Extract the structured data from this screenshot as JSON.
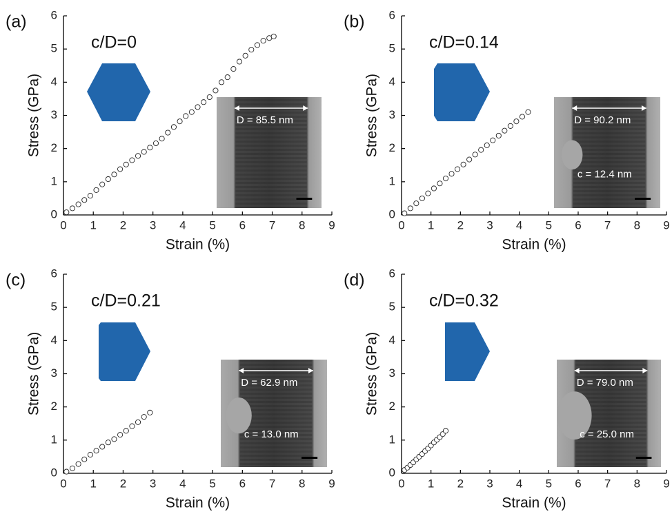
{
  "chart_data": [
    {
      "type": "scatter",
      "panel_label": "(a)",
      "annotation": "c/D=0",
      "xlabel": "Strain (%)",
      "ylabel": "Stress (GPa)",
      "x": [
        0.1,
        0.3,
        0.5,
        0.7,
        0.9,
        1.1,
        1.3,
        1.5,
        1.7,
        1.9,
        2.1,
        2.3,
        2.5,
        2.7,
        2.9,
        3.1,
        3.3,
        3.5,
        3.7,
        3.9,
        4.1,
        4.3,
        4.5,
        4.7,
        4.9,
        5.1,
        5.3,
        5.5,
        5.7,
        5.9,
        6.1,
        6.3,
        6.5,
        6.7,
        6.9,
        7.05
      ],
      "values": [
        0.08,
        0.2,
        0.32,
        0.45,
        0.58,
        0.75,
        0.92,
        1.08,
        1.22,
        1.38,
        1.52,
        1.65,
        1.78,
        1.9,
        2.03,
        2.16,
        2.3,
        2.48,
        2.65,
        2.82,
        2.98,
        3.1,
        3.25,
        3.4,
        3.55,
        3.75,
        4.0,
        4.15,
        4.4,
        4.62,
        4.8,
        4.98,
        5.12,
        5.25,
        5.33,
        5.38
      ],
      "xlim": [
        0,
        9
      ],
      "ylim": [
        0,
        6
      ],
      "xticks": [
        0,
        1,
        2,
        3,
        4,
        5,
        6,
        7,
        8,
        9
      ],
      "yticks": [
        0,
        1,
        2,
        3,
        4,
        5,
        6
      ],
      "inset": {
        "diameter_label": "D = 85.5 nm"
      }
    },
    {
      "type": "scatter",
      "panel_label": "(b)",
      "annotation": "c/D=0.14",
      "xlabel": "Strain (%)",
      "ylabel": "Stress (GPa)",
      "x": [
        0.1,
        0.3,
        0.5,
        0.7,
        0.9,
        1.1,
        1.3,
        1.5,
        1.7,
        1.9,
        2.1,
        2.3,
        2.5,
        2.7,
        2.9,
        3.1,
        3.3,
        3.5,
        3.7,
        3.9,
        4.1,
        4.3
      ],
      "values": [
        0.05,
        0.2,
        0.35,
        0.5,
        0.65,
        0.8,
        0.95,
        1.1,
        1.24,
        1.38,
        1.52,
        1.67,
        1.82,
        1.96,
        2.1,
        2.25,
        2.39,
        2.54,
        2.68,
        2.82,
        2.96,
        3.1
      ],
      "xlim": [
        0,
        9
      ],
      "ylim": [
        0,
        6
      ],
      "xticks": [
        0,
        1,
        2,
        3,
        4,
        5,
        6,
        7,
        8,
        9
      ],
      "yticks": [
        0,
        1,
        2,
        3,
        4,
        5,
        6
      ],
      "inset": {
        "diameter_label": "D = 90.2 nm",
        "notch_label": "c = 12.4 nm"
      }
    },
    {
      "type": "scatter",
      "panel_label": "(c)",
      "annotation": "c/D=0.21",
      "xlabel": "Strain (%)",
      "ylabel": "Stress (GPa)",
      "x": [
        0.1,
        0.3,
        0.5,
        0.7,
        0.9,
        1.1,
        1.3,
        1.5,
        1.7,
        1.9,
        2.1,
        2.3,
        2.5,
        2.7,
        2.9
      ],
      "values": [
        0.05,
        0.15,
        0.28,
        0.42,
        0.56,
        0.68,
        0.8,
        0.93,
        1.03,
        1.16,
        1.28,
        1.42,
        1.54,
        1.7,
        1.83
      ],
      "xlim": [
        0,
        9
      ],
      "ylim": [
        0,
        6
      ],
      "xticks": [
        0,
        1,
        2,
        3,
        4,
        5,
        6,
        7,
        8,
        9
      ],
      "yticks": [
        0,
        1,
        2,
        3,
        4,
        5,
        6
      ],
      "inset": {
        "diameter_label": "D = 62.9 nm",
        "notch_label": "c = 13.0 nm"
      }
    },
    {
      "type": "scatter",
      "panel_label": "(d)",
      "annotation": "c/D=0.32",
      "xlabel": "Strain (%)",
      "ylabel": "Stress (GPa)",
      "x": [
        0.1,
        0.2,
        0.3,
        0.4,
        0.5,
        0.6,
        0.7,
        0.8,
        0.9,
        1.0,
        1.1,
        1.2,
        1.3,
        1.4,
        1.5
      ],
      "values": [
        0.1,
        0.17,
        0.25,
        0.33,
        0.42,
        0.5,
        0.58,
        0.67,
        0.75,
        0.84,
        0.93,
        1.01,
        1.09,
        1.18,
        1.28
      ],
      "xlim": [
        0,
        9
      ],
      "ylim": [
        0,
        6
      ],
      "xticks": [
        0,
        1,
        2,
        3,
        4,
        5,
        6,
        7,
        8,
        9
      ],
      "yticks": [
        0,
        1,
        2,
        3,
        4,
        5,
        6
      ],
      "inset": {
        "diameter_label": "D = 79.0 nm",
        "notch_label": "c = 25.0 nm"
      }
    }
  ]
}
